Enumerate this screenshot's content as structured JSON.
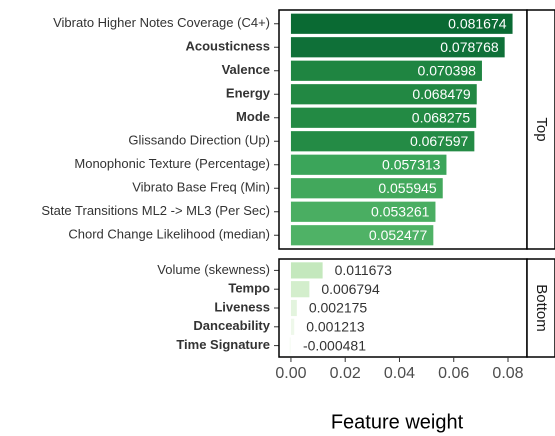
{
  "chart_data": {
    "type": "bar",
    "orientation": "horizontal",
    "xlabel": "Feature weight",
    "xlim": [
      -0.0044,
      0.087
    ],
    "xticks": [
      {
        "value": 0,
        "label": "0.00"
      },
      {
        "value": 0.02,
        "label": "0.02"
      },
      {
        "value": 0.04,
        "label": "0.04"
      },
      {
        "value": 0.06,
        "label": "0.06"
      },
      {
        "value": 0.08,
        "label": "0.08"
      }
    ],
    "facets": [
      {
        "name": "Top",
        "label_position": "inside",
        "categories": [
          "Vibrato Higher Notes Coverage (C4+)",
          "Acousticness",
          "Valence",
          "Energy",
          "Mode",
          "Glissando Direction (Up)",
          "Monophonic Texture (Percentage)",
          "Vibrato Base Freq (Min)",
          "State Transitions ML2 -> ML3 (Per Sec)",
          "Chord Change Likelihood (median)"
        ],
        "bold": [
          false,
          true,
          true,
          true,
          true,
          false,
          false,
          false,
          false,
          false
        ],
        "values": [
          0.081674,
          0.078768,
          0.070398,
          0.068479,
          0.068275,
          0.067597,
          0.057313,
          0.055945,
          0.053261,
          0.052477
        ],
        "colors": [
          "#0a6a33",
          "#0f7038",
          "#1f8541",
          "#228843",
          "#238a44",
          "#248b45",
          "#3ba55a",
          "#42a85c",
          "#4aae62",
          "#4fb266"
        ]
      },
      {
        "name": "Bottom",
        "label_position": "outside",
        "categories": [
          "Volume (skewness)",
          "Tempo",
          "Liveness",
          "Danceability",
          "Time Signature"
        ],
        "bold": [
          false,
          true,
          true,
          true,
          true
        ],
        "values": [
          0.011673,
          0.006794,
          0.002175,
          0.001213,
          -0.000481
        ],
        "colors": [
          "#c4e8bd",
          "#d3eecc",
          "#e3f4de",
          "#eef8ea",
          "#f7fcf5"
        ]
      }
    ]
  }
}
